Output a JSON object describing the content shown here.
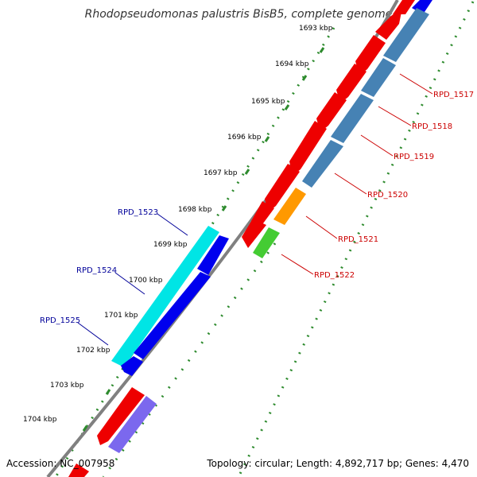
{
  "title": "Rhodopseudomonas palustris BisB5, complete genome",
  "accession": "Accession: NC_007958",
  "summary": "Topology: circular; Length: 4,892,717 bp; Genes: 4,470",
  "ticks": [
    "1693 kbp",
    "1694 kbp",
    "1695 kbp",
    "1696 kbp",
    "1697 kbp",
    "1698 kbp",
    "1699 kbp",
    "1700 kbp",
    "1701 kbp",
    "1702 kbp",
    "1703 kbp",
    "1704 kbp"
  ],
  "right_genes": [
    "RPD_1517",
    "RPD_1518",
    "RPD_1519",
    "RPD_1520",
    "RPD_1521",
    "RPD_1522"
  ],
  "left_genes": [
    "RPD_1523",
    "RPD_1524",
    "RPD_1525"
  ],
  "colors": {
    "backbone": "#808080",
    "tick_dots": "#2e8b2e",
    "cds_red": "#ee0000",
    "cds_steelblue": "#4682b4",
    "cds_orange": "#ff9900",
    "cds_green": "#44cc33",
    "cds_cyan": "#00e5e5",
    "cds_blue": "#0000ee",
    "cds_purple": "#7b68ee",
    "label_red": "#cc0000",
    "label_blue": "#000099"
  }
}
